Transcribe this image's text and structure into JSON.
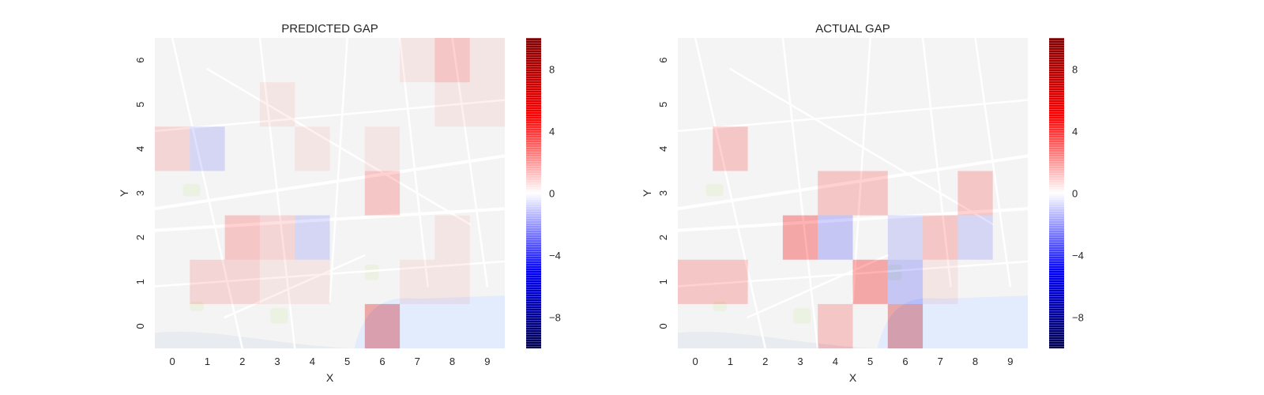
{
  "chart_data": [
    {
      "type": "heatmap",
      "title": "PREDICTED GAP",
      "xlabel": "X",
      "ylabel": "Y",
      "x_ticks": [
        "0",
        "1",
        "2",
        "3",
        "4",
        "5",
        "6",
        "7",
        "8",
        "9"
      ],
      "y_ticks": [
        "0",
        "1",
        "2",
        "3",
        "4",
        "5",
        "6"
      ],
      "background": "street map",
      "grid": false,
      "colormap": "seismic",
      "vmin": -10,
      "vmax": 10,
      "colorbar_ticks": [
        "8",
        "4",
        "0",
        "−4",
        "−8"
      ],
      "colorbar_values": [
        8,
        4,
        0,
        -4,
        -8
      ],
      "values_by_row_y0_to_y6": [
        [
          0,
          0,
          0,
          0,
          0,
          0,
          6,
          0,
          0,
          0
        ],
        [
          0,
          2,
          2,
          1,
          1,
          0,
          0,
          1,
          1,
          0
        ],
        [
          0,
          0,
          3,
          2,
          -2,
          0,
          0,
          0,
          1,
          0
        ],
        [
          0,
          0,
          0,
          0,
          0,
          0,
          3,
          0,
          0,
          0
        ],
        [
          2,
          -2,
          0,
          0,
          1,
          0,
          1,
          0,
          0,
          0
        ],
        [
          0,
          0,
          0,
          1,
          0,
          0,
          0,
          0,
          1,
          1
        ],
        [
          0,
          0,
          0,
          0,
          0,
          0,
          0,
          1,
          3,
          1
        ]
      ]
    },
    {
      "type": "heatmap",
      "title": "ACTUAL GAP",
      "xlabel": "X",
      "ylabel": "Y",
      "x_ticks": [
        "0",
        "1",
        "2",
        "3",
        "4",
        "5",
        "6",
        "7",
        "8",
        "9"
      ],
      "y_ticks": [
        "0",
        "1",
        "2",
        "3",
        "4",
        "5",
        "6"
      ],
      "background": "street map",
      "grid": false,
      "colormap": "seismic",
      "vmin": -10,
      "vmax": 10,
      "colorbar_ticks": [
        "8",
        "4",
        "0",
        "−4",
        "−8"
      ],
      "colorbar_values": [
        8,
        4,
        0,
        -4,
        -8
      ],
      "values_by_row_y0_to_y6": [
        [
          0,
          0,
          0,
          0,
          3,
          0,
          7,
          0,
          0,
          0
        ],
        [
          3,
          3,
          0,
          0,
          0,
          5,
          -3,
          1,
          0,
          0
        ],
        [
          0,
          0,
          0,
          5,
          -3,
          0,
          -2,
          3,
          -2,
          0
        ],
        [
          0,
          0,
          0,
          0,
          3,
          3,
          0,
          0,
          3,
          0
        ],
        [
          0,
          3,
          0,
          0,
          0,
          0,
          0,
          0,
          0,
          0
        ],
        [
          0,
          0,
          0,
          0,
          0,
          0,
          0,
          0,
          0,
          0
        ],
        [
          0,
          0,
          0,
          0,
          0,
          0,
          0,
          0,
          0,
          0
        ]
      ]
    }
  ]
}
